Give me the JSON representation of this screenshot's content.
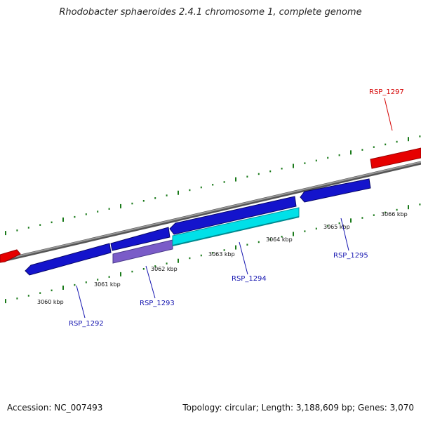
{
  "title": "Rhodobacter sphaeroides 2.4.1 chromosome 1, complete genome",
  "footer": {
    "accession": "Accession: NC_007493",
    "summary": "Topology: circular; Length: 3,188,609 bp; Genes: 3,070"
  },
  "colors": {
    "backbone": "#808080",
    "tick": "#1a7a1a",
    "forward_gene": "#e60000",
    "reverse_gene": "#1414cc",
    "cds_cyan": "#00e0e8",
    "cds_purple": "#7a5cc8",
    "label_blue": "#1515b0",
    "label_red": "#d40000"
  },
  "scale_labels": [
    "3060 kbp",
    "3061 kbp",
    "3062 kbp",
    "3063 kbp",
    "3064 kbp",
    "3065 kbp",
    "3066 kbp"
  ],
  "gene_labels": [
    "RSP_1292",
    "RSP_1293",
    "RSP_1294",
    "RSP_1295",
    "RSP_1297"
  ]
}
